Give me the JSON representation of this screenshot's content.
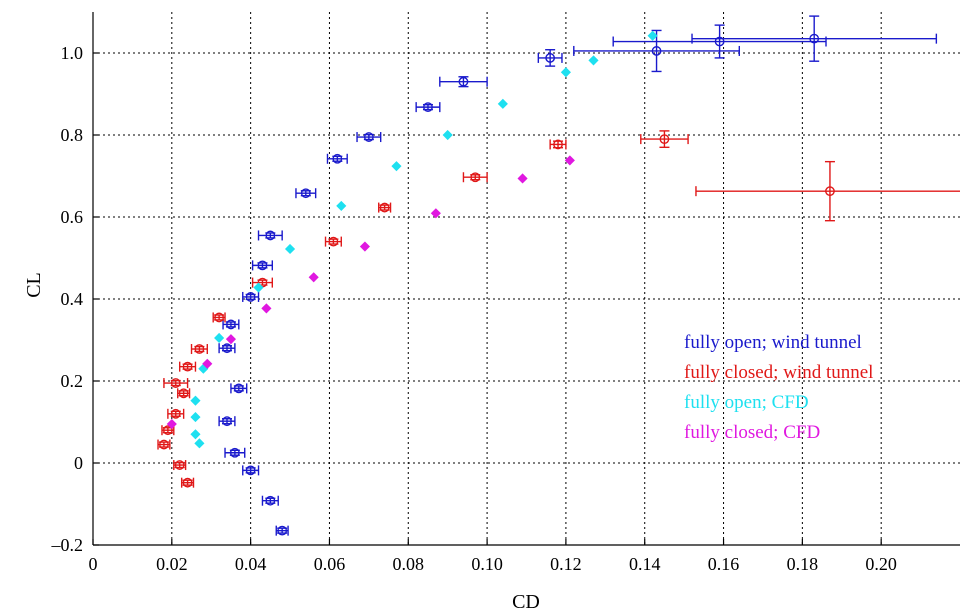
{
  "chart_data": {
    "type": "scatter",
    "xlabel": "CD",
    "ylabel": "CL",
    "xlim": [
      0,
      0.22
    ],
    "ylim": [
      -0.2,
      1.1
    ],
    "x_ticks": [
      0,
      0.02,
      0.04,
      0.06,
      0.08,
      0.1,
      0.12,
      0.14,
      0.16,
      0.18,
      0.2
    ],
    "x_tick_labels": [
      "0",
      "0.02",
      "0.04",
      "0.06",
      "0.08",
      "0.10",
      "0.12",
      "0.14",
      "0.16",
      "0.18",
      "0.20"
    ],
    "y_ticks": [
      -0.2,
      0,
      0.2,
      0.4,
      0.6,
      0.8,
      1.0
    ],
    "y_tick_labels": [
      "–0.2",
      "0",
      "0.2",
      "0.4",
      "0.6",
      "0.8",
      "1.0"
    ],
    "grid": true,
    "legend_position": "right",
    "series": [
      {
        "name": "fully open; wind tunnel",
        "color": "#1a1acc",
        "marker": "circle-with-errorbars",
        "points": [
          {
            "x": 0.048,
            "y": -0.165,
            "xerr": 0.0015,
            "yerr": 0.006
          },
          {
            "x": 0.045,
            "y": -0.092,
            "xerr": 0.002,
            "yerr": 0.006
          },
          {
            "x": 0.04,
            "y": -0.018,
            "xerr": 0.002,
            "yerr": 0.006
          },
          {
            "x": 0.036,
            "y": 0.025,
            "xerr": 0.0025,
            "yerr": 0.006
          },
          {
            "x": 0.034,
            "y": 0.102,
            "xerr": 0.002,
            "yerr": 0.006
          },
          {
            "x": 0.037,
            "y": 0.182,
            "xerr": 0.002,
            "yerr": 0.006
          },
          {
            "x": 0.034,
            "y": 0.28,
            "xerr": 0.002,
            "yerr": 0.006
          },
          {
            "x": 0.035,
            "y": 0.338,
            "xerr": 0.002,
            "yerr": 0.006
          },
          {
            "x": 0.04,
            "y": 0.405,
            "xerr": 0.002,
            "yerr": 0.006
          },
          {
            "x": 0.043,
            "y": 0.482,
            "xerr": 0.0025,
            "yerr": 0.006
          },
          {
            "x": 0.045,
            "y": 0.555,
            "xerr": 0.003,
            "yerr": 0.006
          },
          {
            "x": 0.054,
            "y": 0.658,
            "xerr": 0.0025,
            "yerr": 0.006
          },
          {
            "x": 0.062,
            "y": 0.742,
            "xerr": 0.0025,
            "yerr": 0.006
          },
          {
            "x": 0.07,
            "y": 0.795,
            "xerr": 0.003,
            "yerr": 0.006
          },
          {
            "x": 0.085,
            "y": 0.868,
            "xerr": 0.003,
            "yerr": 0.006
          },
          {
            "x": 0.094,
            "y": 0.93,
            "xerr": 0.006,
            "yerr": 0.012
          },
          {
            "x": 0.116,
            "y": 0.988,
            "xerr": 0.003,
            "yerr": 0.02
          },
          {
            "x": 0.143,
            "y": 1.005,
            "xerr": 0.021,
            "yerr": 0.05
          },
          {
            "x": 0.159,
            "y": 1.028,
            "xerr": 0.027,
            "yerr": 0.04
          },
          {
            "x": 0.183,
            "y": 1.035,
            "xerr": 0.031,
            "yerr": 0.055
          }
        ]
      },
      {
        "name": "fully closed; wind tunnel",
        "color": "#e01818",
        "marker": "circle-with-errorbars",
        "points": [
          {
            "x": 0.024,
            "y": -0.048,
            "xerr": 0.0015,
            "yerr": 0.006
          },
          {
            "x": 0.022,
            "y": -0.005,
            "xerr": 0.0015,
            "yerr": 0.006
          },
          {
            "x": 0.018,
            "y": 0.045,
            "xerr": 0.0015,
            "yerr": 0.006
          },
          {
            "x": 0.019,
            "y": 0.08,
            "xerr": 0.0015,
            "yerr": 0.006
          },
          {
            "x": 0.021,
            "y": 0.12,
            "xerr": 0.002,
            "yerr": 0.006
          },
          {
            "x": 0.023,
            "y": 0.17,
            "xerr": 0.0015,
            "yerr": 0.006
          },
          {
            "x": 0.021,
            "y": 0.195,
            "xerr": 0.003,
            "yerr": 0.006
          },
          {
            "x": 0.024,
            "y": 0.235,
            "xerr": 0.002,
            "yerr": 0.006
          },
          {
            "x": 0.027,
            "y": 0.278,
            "xerr": 0.002,
            "yerr": 0.006
          },
          {
            "x": 0.032,
            "y": 0.355,
            "xerr": 0.0015,
            "yerr": 0.006
          },
          {
            "x": 0.043,
            "y": 0.44,
            "xerr": 0.0025,
            "yerr": 0.006
          },
          {
            "x": 0.061,
            "y": 0.54,
            "xerr": 0.002,
            "yerr": 0.006
          },
          {
            "x": 0.074,
            "y": 0.623,
            "xerr": 0.0015,
            "yerr": 0.006
          },
          {
            "x": 0.097,
            "y": 0.697,
            "xerr": 0.003,
            "yerr": 0.006
          },
          {
            "x": 0.118,
            "y": 0.777,
            "xerr": 0.002,
            "yerr": 0.008
          },
          {
            "x": 0.145,
            "y": 0.79,
            "xerr": 0.006,
            "yerr": 0.02
          },
          {
            "x": 0.187,
            "y": 0.663,
            "xerr": 0.034,
            "yerr": 0.072
          }
        ]
      },
      {
        "name": "fully open; CFD",
        "color": "#1ee0f0",
        "marker": "diamond",
        "points": [
          {
            "x": 0.027,
            "y": 0.048
          },
          {
            "x": 0.026,
            "y": 0.07
          },
          {
            "x": 0.026,
            "y": 0.112
          },
          {
            "x": 0.026,
            "y": 0.152
          },
          {
            "x": 0.028,
            "y": 0.23
          },
          {
            "x": 0.032,
            "y": 0.305
          },
          {
            "x": 0.042,
            "y": 0.428
          },
          {
            "x": 0.05,
            "y": 0.522
          },
          {
            "x": 0.063,
            "y": 0.627
          },
          {
            "x": 0.077,
            "y": 0.724
          },
          {
            "x": 0.09,
            "y": 0.8
          },
          {
            "x": 0.104,
            "y": 0.876
          },
          {
            "x": 0.12,
            "y": 0.953
          },
          {
            "x": 0.127,
            "y": 0.982
          },
          {
            "x": 0.142,
            "y": 1.042
          }
        ]
      },
      {
        "name": "fully closed; CFD",
        "color": "#e018e0",
        "marker": "diamond",
        "points": [
          {
            "x": 0.02,
            "y": 0.095
          },
          {
            "x": 0.029,
            "y": 0.242
          },
          {
            "x": 0.035,
            "y": 0.302
          },
          {
            "x": 0.044,
            "y": 0.377
          },
          {
            "x": 0.056,
            "y": 0.453
          },
          {
            "x": 0.069,
            "y": 0.528
          },
          {
            "x": 0.087,
            "y": 0.609
          },
          {
            "x": 0.109,
            "y": 0.694
          },
          {
            "x": 0.121,
            "y": 0.738
          }
        ]
      }
    ]
  }
}
